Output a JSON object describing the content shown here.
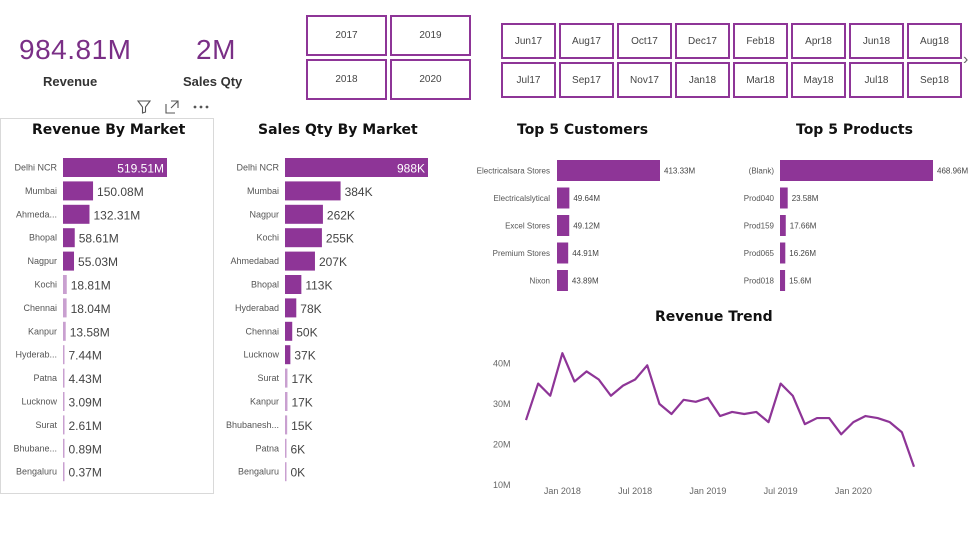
{
  "kpis": {
    "revenue": {
      "value": "984.81M",
      "label": "Revenue"
    },
    "sales_qty": {
      "value": "2M",
      "label": "Sales Qty"
    }
  },
  "year_slicer": [
    "2017",
    "2019",
    "2018",
    "2020"
  ],
  "month_slicer": [
    "Jun17",
    "Aug17",
    "Oct17",
    "Dec17",
    "Feb18",
    "Apr18",
    "Jun18",
    "Aug18",
    "Jul17",
    "Sep17",
    "Nov17",
    "Jan18",
    "Mar18",
    "May18",
    "Jul18",
    "Sep18"
  ],
  "colors": {
    "accent": "#8e3597",
    "bar": "#8e3597",
    "bar_light": "#c9a0d0"
  },
  "icons": {
    "filter": "filter-icon",
    "focus": "focus-mode-icon",
    "more": "more-options-icon",
    "next": "chevron-right-icon"
  },
  "chart_data": [
    {
      "type": "bar",
      "orientation": "horizontal",
      "title": "Revenue By Market",
      "categories": [
        "Delhi NCR",
        "Mumbai",
        "Ahmeda...",
        "Bhopal",
        "Nagpur",
        "Kochi",
        "Chennai",
        "Kanpur",
        "Hyderab...",
        "Patna",
        "Lucknow",
        "Surat",
        "Bhubane...",
        "Bengaluru"
      ],
      "values": [
        519.51,
        150.08,
        132.31,
        58.61,
        55.03,
        18.81,
        18.04,
        13.58,
        7.44,
        4.43,
        3.09,
        2.61,
        0.89,
        0.37
      ],
      "labels": [
        "519.51M",
        "150.08M",
        "132.31M",
        "58.61M",
        "55.03M",
        "18.81M",
        "18.04M",
        "13.58M",
        "7.44M",
        "4.43M",
        "3.09M",
        "2.61M",
        "0.89M",
        "0.37M"
      ]
    },
    {
      "type": "bar",
      "orientation": "horizontal",
      "title": "Sales Qty By Market",
      "categories": [
        "Delhi NCR",
        "Mumbai",
        "Nagpur",
        "Kochi",
        "Ahmedabad",
        "Bhopal",
        "Hyderabad",
        "Chennai",
        "Lucknow",
        "Surat",
        "Kanpur",
        "Bhubanesh...",
        "Patna",
        "Bengaluru"
      ],
      "values": [
        988,
        384,
        262,
        255,
        207,
        113,
        78,
        50,
        37,
        17,
        17,
        15,
        6,
        0
      ],
      "labels": [
        "988K",
        "384K",
        "262K",
        "255K",
        "207K",
        "113K",
        "78K",
        "50K",
        "37K",
        "17K",
        "17K",
        "15K",
        "6K",
        "0K"
      ]
    },
    {
      "type": "bar",
      "orientation": "horizontal",
      "title": "Top 5 Customers",
      "categories": [
        "Electricalsara Stores",
        "Electricalslytical",
        "Excel Stores",
        "Premium Stores",
        "Nixon"
      ],
      "values": [
        413.33,
        49.64,
        49.12,
        44.91,
        43.89
      ],
      "labels": [
        "413.33M",
        "49.64M",
        "49.12M",
        "44.91M",
        "43.89M"
      ]
    },
    {
      "type": "bar",
      "orientation": "horizontal",
      "title": "Top 5 Products",
      "categories": [
        "(Blank)",
        "Prod040",
        "Prod159",
        "Prod065",
        "Prod018"
      ],
      "values": [
        468.96,
        23.58,
        17.66,
        16.26,
        15.6
      ],
      "labels": [
        "468.96M",
        "23.58M",
        "17.66M",
        "16.26M",
        "15.6M"
      ]
    },
    {
      "type": "line",
      "title": "Revenue Trend",
      "x_ticks": [
        "Jan 2018",
        "Jul 2018",
        "Jan 2019",
        "Jul 2019",
        "Jan 2020"
      ],
      "y_ticks": [
        "10M",
        "20M",
        "30M",
        "40M"
      ],
      "ylim": [
        10,
        45
      ],
      "x": [
        "Oct 2017",
        "Nov 2017",
        "Dec 2017",
        "Jan 2018",
        "Feb 2018",
        "Mar 2018",
        "Apr 2018",
        "May 2018",
        "Jun 2018",
        "Jul 2018",
        "Aug 2018",
        "Sep 2018",
        "Oct 2018",
        "Nov 2018",
        "Dec 2018",
        "Jan 2019",
        "Feb 2019",
        "Mar 2019",
        "Apr 2019",
        "May 2019",
        "Jun 2019",
        "Jul 2019",
        "Aug 2019",
        "Sep 2019",
        "Oct 2019",
        "Nov 2019",
        "Dec 2019",
        "Jan 2020",
        "Feb 2020",
        "Mar 2020",
        "Apr 2020",
        "May 2020",
        "Jun 2020"
      ],
      "values": [
        26,
        35,
        32,
        42.5,
        35.5,
        38,
        36,
        32,
        34.5,
        36,
        39.5,
        30,
        27.5,
        31,
        30.5,
        31.5,
        27,
        28,
        27.5,
        28,
        25.5,
        35,
        32,
        25,
        26.5,
        26.5,
        22.5,
        25.5,
        27,
        26.5,
        25.5,
        23,
        14.5
      ]
    }
  ]
}
